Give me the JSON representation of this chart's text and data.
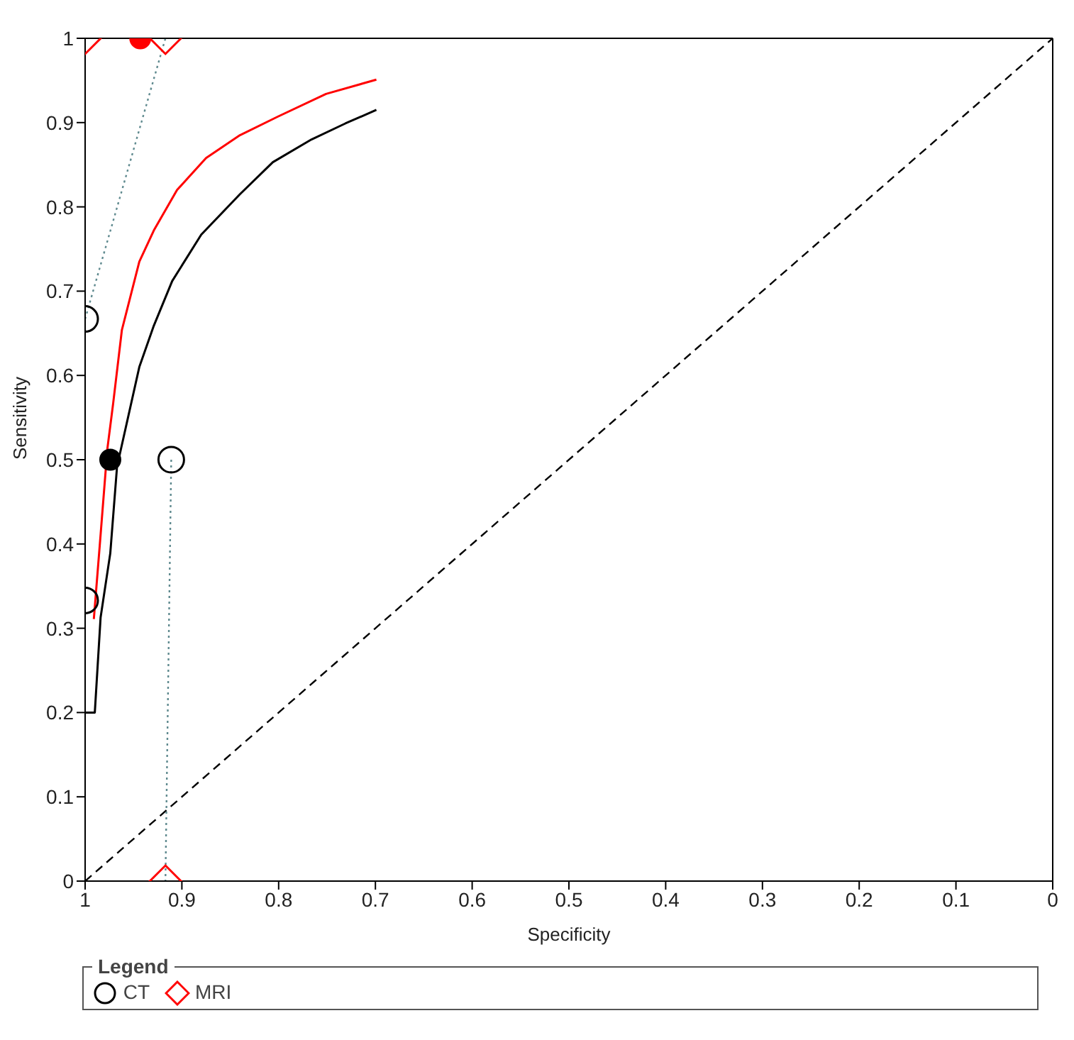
{
  "chart_data": {
    "type": "scatter",
    "xlabel": "Specificity",
    "ylabel": "Sensitivity",
    "xlim": [
      1,
      0
    ],
    "ylim": [
      0,
      1
    ],
    "xticks": [
      1,
      0.9,
      0.8,
      0.7,
      0.6,
      0.5,
      0.4,
      0.3,
      0.2,
      0.1,
      0
    ],
    "yticks": [
      0,
      0.1,
      0.2,
      0.3,
      0.4,
      0.5,
      0.6,
      0.7,
      0.8,
      0.9,
      1
    ],
    "grid": false,
    "legend": "bottom",
    "legend_title": "Legend",
    "series": [
      {
        "type": "line",
        "color": "#000000",
        "line_style": "dashed",
        "x": [
          1,
          0
        ],
        "values": [
          0,
          1
        ]
      },
      {
        "type": "line",
        "color": "#5f8a8f",
        "line_style": "dotted",
        "x": [
          1,
          0.917
        ],
        "values": [
          0.667,
          1
        ]
      },
      {
        "type": "line",
        "color": "#5f8a8f",
        "line_style": "dotted",
        "x": [
          0.911,
          0.917
        ],
        "values": [
          0.5,
          0
        ]
      },
      {
        "type": "line",
        "color": "#000000",
        "line_style": "solid",
        "x": [
          1,
          0.99,
          0.984,
          0.974,
          0.967,
          0.944,
          0.929,
          0.91,
          0.88,
          0.84,
          0.806,
          0.766,
          0.731,
          0.699
        ],
        "values": [
          0.2,
          0.2,
          0.313,
          0.389,
          0.492,
          0.61,
          0.659,
          0.712,
          0.767,
          0.815,
          0.853,
          0.88,
          0.899,
          0.915
        ]
      },
      {
        "type": "line",
        "color": "#ff0000",
        "line_style": "solid",
        "x": [
          0.991,
          0.984,
          0.977,
          0.971,
          0.962,
          0.944,
          0.929,
          0.905,
          0.875,
          0.84,
          0.801,
          0.751,
          0.699
        ],
        "values": [
          0.311,
          0.411,
          0.513,
          0.567,
          0.654,
          0.735,
          0.772,
          0.82,
          0.858,
          0.885,
          0.907,
          0.934,
          0.951
        ]
      },
      {
        "name": "CT",
        "color": "#000000",
        "marker": "circle",
        "x": [
          1,
          0.911,
          1
        ],
        "values": [
          0.667,
          0.5,
          0.333
        ]
      },
      {
        "name": "MRI",
        "color": "#ff0000",
        "marker": "diamond",
        "x": [
          1,
          0.917,
          0.917
        ],
        "values": [
          1,
          1,
          0
        ]
      },
      {
        "color": "#000000",
        "marker": "circle",
        "x": [
          0.974
        ],
        "values": [
          0.5
        ]
      },
      {
        "color": "#ff0000",
        "marker": "circle",
        "x": [
          0.943
        ],
        "values": [
          1
        ]
      }
    ]
  }
}
